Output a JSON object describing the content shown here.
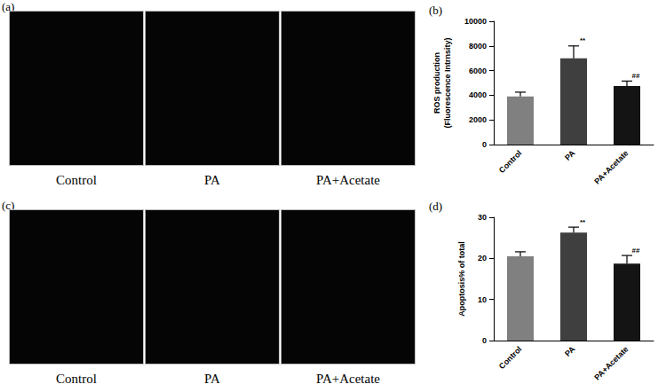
{
  "chart_data": [
    {
      "type": "bar",
      "title": "(b)",
      "categories": [
        "Control",
        "PA",
        "PA+Acetate"
      ],
      "values": [
        3900,
        7000,
        4750
      ],
      "errors": [
        350,
        1000,
        400
      ],
      "colors": [
        "#808080",
        "#3f3f3f",
        "#141414"
      ],
      "y_label": "ROS production\n(Fluorescence Intrnsity)",
      "ylim": [
        0,
        10000
      ],
      "yticks": [
        0,
        2000,
        4000,
        6000,
        8000,
        10000
      ],
      "annotations": [
        {
          "category": "PA",
          "text": "**"
        },
        {
          "category": "PA+Acetate",
          "text": "##"
        }
      ],
      "grid": false
    },
    {
      "type": "bar",
      "title": "(d)",
      "categories": [
        "Control",
        "PA",
        "PA+Acetate"
      ],
      "values": [
        20.5,
        26.3,
        18.7
      ],
      "errors": [
        1.1,
        1.3,
        2.0
      ],
      "colors": [
        "#808080",
        "#3f3f3f",
        "#141414"
      ],
      "y_label": "Apoptosis% of total",
      "ylim": [
        0,
        30
      ],
      "yticks": [
        0,
        10,
        20,
        30
      ],
      "annotations": [
        {
          "category": "PA",
          "text": "**"
        },
        {
          "category": "PA+Acetate",
          "text": "##"
        }
      ],
      "grid": false
    }
  ],
  "image_panels": [
    {
      "label": "(a)",
      "captions": [
        "Control",
        "PA",
        "PA+Acetate"
      ]
    },
    {
      "label": "(c)",
      "captions": [
        "Control",
        "PA",
        "PA+Acetate"
      ]
    }
  ]
}
